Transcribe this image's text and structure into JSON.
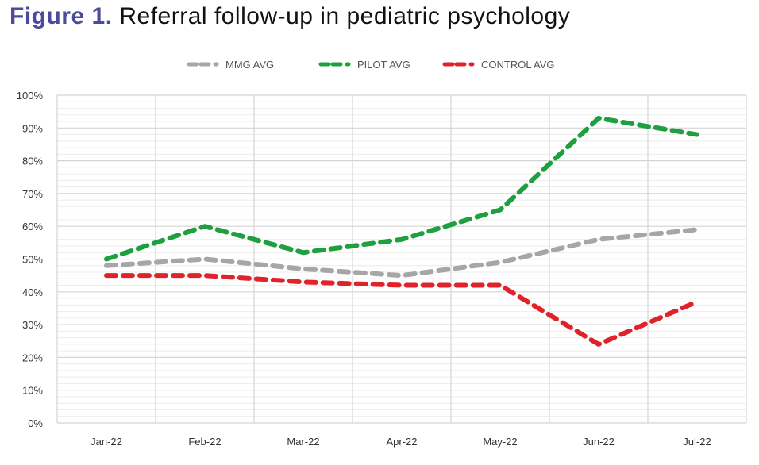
{
  "title": {
    "label": "Figure 1.",
    "text": "Referral follow-up in pediatric psychology"
  },
  "chart_data": {
    "type": "line",
    "categories": [
      "Jan-22",
      "Feb-22",
      "Mar-22",
      "Apr-22",
      "May-22",
      "Jun-22",
      "Jul-22"
    ],
    "series": [
      {
        "name": "MMG AVG",
        "color": "#a6a6a6",
        "values": [
          48,
          50,
          47,
          45,
          49,
          56,
          59
        ]
      },
      {
        "name": "PILOT AVG",
        "color": "#1fa040",
        "values": [
          50,
          60,
          52,
          56,
          65,
          93,
          88
        ]
      },
      {
        "name": "CONTROL AVG",
        "color": "#e0232b",
        "values": [
          45,
          45,
          43,
          42,
          42,
          24,
          37
        ]
      }
    ],
    "yticks": [
      "0%",
      "10%",
      "20%",
      "30%",
      "40%",
      "50%",
      "60%",
      "70%",
      "80%",
      "90%",
      "100%"
    ],
    "ylim": [
      0,
      100
    ],
    "grid": true,
    "line_style": "dashed",
    "legend_position": "top"
  }
}
